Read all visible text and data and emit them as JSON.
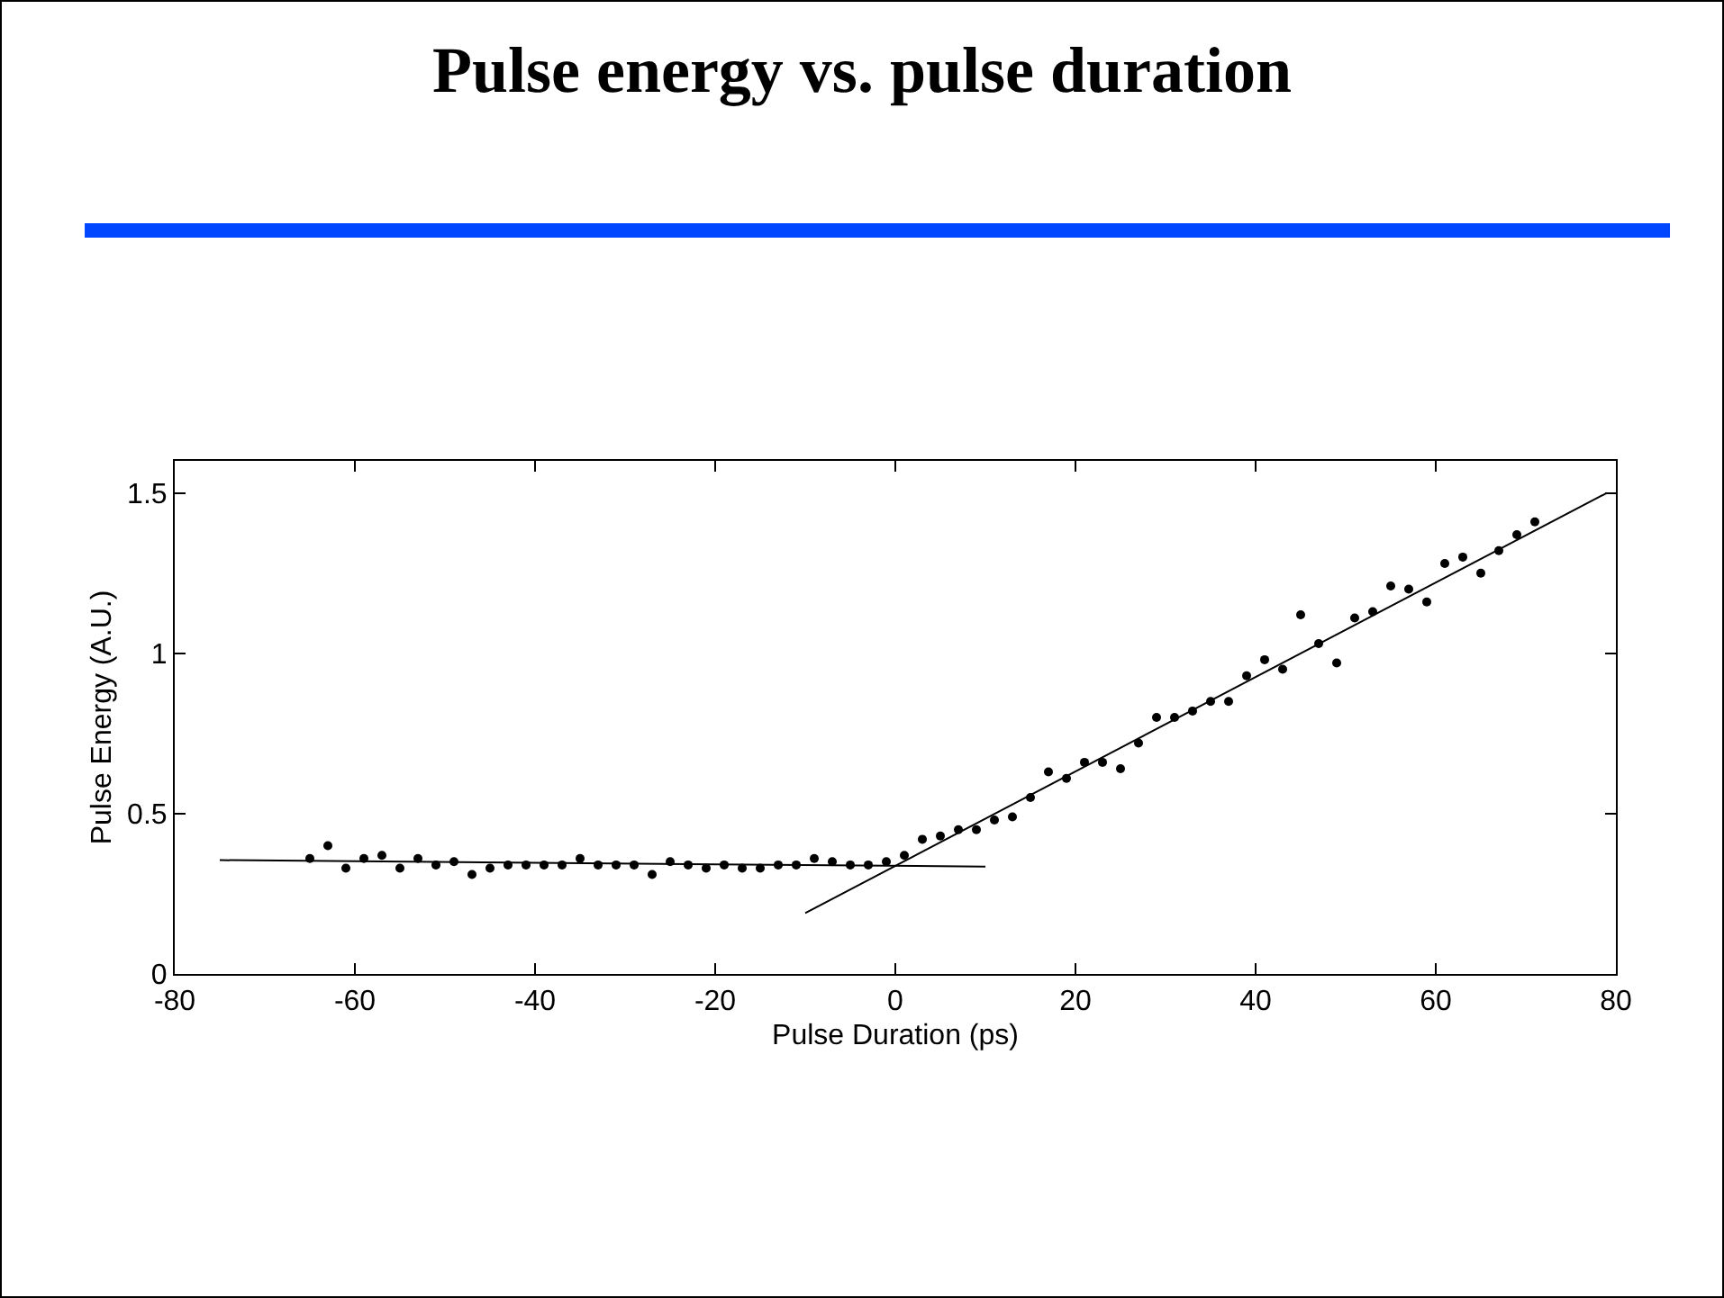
{
  "chart_data": {
    "type": "scatter",
    "title": "Pulse energy vs. pulse duration",
    "xlabel": "Pulse Duration (ps)",
    "ylabel": "Pulse Energy (A.U.)",
    "xlim": [
      -80,
      80
    ],
    "xticks": [
      -80,
      -60,
      -40,
      -20,
      0,
      20,
      40,
      60,
      80
    ],
    "ylim": [
      0,
      1.6
    ],
    "yticks": [
      0,
      0.5,
      1,
      1.5
    ],
    "grid": false,
    "legend": false,
    "marker": "circle",
    "x": [
      -65,
      -63,
      -61,
      -59,
      -57,
      -55,
      -53,
      -51,
      -49,
      -47,
      -45,
      -43,
      -41,
      -39,
      -37,
      -35,
      -33,
      -31,
      -29,
      -27,
      -25,
      -23,
      -21,
      -19,
      -17,
      -15,
      -13,
      -11,
      -9,
      -7,
      -5,
      -3,
      -1,
      1,
      3,
      5,
      7,
      9,
      11,
      13,
      15,
      17,
      19,
      21,
      23,
      25,
      27,
      29,
      31,
      33,
      35,
      37,
      39,
      41,
      43,
      45,
      47,
      49,
      51,
      53,
      55,
      57,
      59,
      61,
      63,
      65,
      67,
      69,
      71
    ],
    "series": [
      {
        "color": "#000000",
        "values": [
          0.36,
          0.4,
          0.33,
          0.36,
          0.37,
          0.33,
          0.36,
          0.34,
          0.35,
          0.31,
          0.33,
          0.34,
          0.34,
          0.34,
          0.34,
          0.36,
          0.34,
          0.34,
          0.34,
          0.31,
          0.35,
          0.34,
          0.33,
          0.34,
          0.33,
          0.33,
          0.34,
          0.34,
          0.36,
          0.35,
          0.34,
          0.34,
          0.35,
          0.37,
          0.42,
          0.43,
          0.45,
          0.45,
          0.48,
          0.49,
          0.55,
          0.63,
          0.61,
          0.66,
          0.66,
          0.64,
          0.72,
          0.8,
          0.8,
          0.82,
          0.85,
          0.85,
          0.93,
          0.98,
          0.95,
          1.12,
          1.03,
          0.97,
          1.11,
          1.13,
          1.21,
          1.2,
          1.16,
          1.28,
          1.3,
          1.25,
          1.32,
          1.37,
          1.41
        ]
      },
      {
        "type": "line",
        "color": "#000000",
        "marker": "none",
        "line_style": "solid",
        "x": [
          -75,
          10
        ],
        "values": [
          0.355,
          0.335
        ]
      },
      {
        "type": "line",
        "color": "#000000",
        "marker": "none",
        "line_style": "solid",
        "x": [
          -10,
          79
        ],
        "values": [
          0.19,
          1.5
        ]
      }
    ]
  }
}
